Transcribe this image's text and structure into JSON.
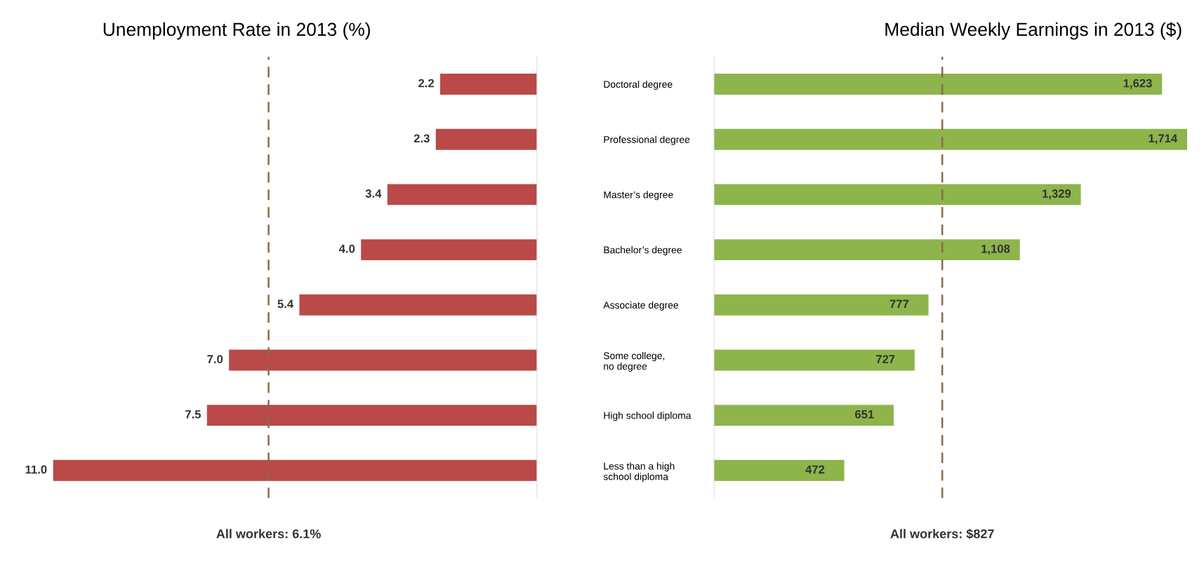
{
  "chart_data": [
    {
      "type": "bar",
      "orientation": "horizontal",
      "title": "Unemployment Rate in 2013 (%)",
      "categories": [
        "Doctoral degree",
        "Professional degree",
        "Master’s degree",
        "Bachelor’s degree",
        "Associate degree",
        "Some college,\nno degree",
        "High school diploma",
        "Less than a high\nschool diploma"
      ],
      "values": [
        2.2,
        2.3,
        3.4,
        4.0,
        5.4,
        7.0,
        7.5,
        11.0
      ],
      "value_labels": [
        "2.2",
        "2.3",
        "3.4",
        "4.0",
        "5.4",
        "7.0",
        "7.5",
        "11.0"
      ],
      "color": "#b94a48",
      "xlim": [
        11.0,
        0
      ],
      "tick_labels": "y",
      "grid": false,
      "ref_lines": [
        {
          "axis": "x",
          "value": 6.1,
          "label": "All workers: 6.1%",
          "color": "#8b6a4a",
          "line_style": "dashed"
        }
      ]
    },
    {
      "type": "bar",
      "orientation": "horizontal",
      "title": "Median Weekly Earnings in 2013 ($)",
      "categories": [
        null,
        null,
        null,
        null,
        null,
        null,
        null,
        null
      ],
      "values": [
        1623,
        1714,
        1329,
        1108,
        777,
        727,
        651,
        472
      ],
      "value_labels": [
        "1,623",
        "1,714",
        "1,329",
        "1,108",
        "777",
        "727",
        "651",
        "472"
      ],
      "color": "#8db54b",
      "xlim": [
        0,
        1714
      ],
      "tick_labels": false,
      "grid": false,
      "ref_lines": [
        {
          "axis": "x",
          "value": 827,
          "label": "All workers: $827",
          "color": "#8b6a4a",
          "line_style": "dashed"
        }
      ]
    }
  ]
}
